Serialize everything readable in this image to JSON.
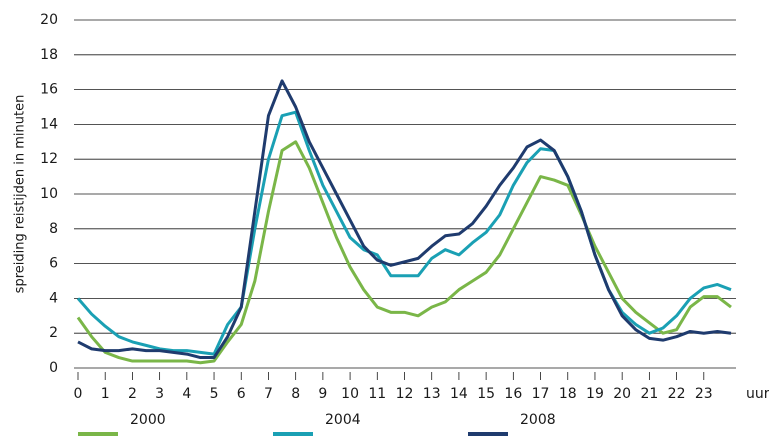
{
  "chart_data": {
    "type": "line",
    "ylabel": "spreiding reistijden in minuten",
    "xlabel": "uur",
    "x": [
      0,
      0.5,
      1,
      1.5,
      2,
      2.5,
      3,
      3.5,
      4,
      4.5,
      5,
      5.5,
      6,
      6.5,
      7,
      7.5,
      8,
      8.5,
      9,
      9.5,
      10,
      10.5,
      11,
      11.5,
      12,
      12.5,
      13,
      13.5,
      14,
      14.5,
      15,
      15.5,
      16,
      16.5,
      17,
      17.5,
      18,
      18.5,
      19,
      19.5,
      20,
      20.5,
      21,
      21.5,
      22,
      22.5,
      23,
      23.5,
      24
    ],
    "series": [
      {
        "name": "2000",
        "color": "#7ab648",
        "values": [
          2.9,
          1.8,
          0.9,
          0.6,
          0.4,
          0.4,
          0.4,
          0.4,
          0.4,
          0.3,
          0.4,
          1.5,
          2.5,
          5,
          9,
          12.5,
          13,
          11.5,
          9.5,
          7.5,
          5.8,
          4.5,
          3.5,
          3.2,
          3.2,
          3.0,
          3.5,
          3.8,
          4.5,
          5.0,
          5.5,
          6.5,
          8,
          9.5,
          11,
          10.8,
          10.5,
          8.8,
          7,
          5.5,
          4,
          3.2,
          2.6,
          2.0,
          2.2,
          3.5,
          4.1,
          4.1,
          3.5
        ]
      },
      {
        "name": "2004",
        "color": "#1aa0b4",
        "values": [
          4.0,
          3.1,
          2.4,
          1.8,
          1.5,
          1.3,
          1.1,
          1.0,
          1.0,
          0.9,
          0.8,
          2.5,
          3.5,
          8,
          12,
          14.5,
          14.7,
          12.5,
          10.5,
          9,
          7.5,
          6.8,
          6.5,
          5.3,
          5.3,
          5.3,
          6.3,
          6.8,
          6.5,
          7.2,
          7.8,
          8.8,
          10.5,
          11.8,
          12.6,
          12.5,
          11,
          9,
          6.5,
          4.5,
          3.2,
          2.5,
          2.0,
          2.3,
          3.0,
          4.0,
          4.6,
          4.8,
          4.5
        ]
      },
      {
        "name": "2008",
        "color": "#1f3b6e",
        "values": [
          1.5,
          1.1,
          1.0,
          1.0,
          1.1,
          1.0,
          1.0,
          0.9,
          0.8,
          0.6,
          0.6,
          1.8,
          3.5,
          9,
          14.5,
          16.5,
          15,
          13,
          11.5,
          10,
          8.5,
          7,
          6.2,
          5.9,
          6.1,
          6.3,
          7,
          7.6,
          7.7,
          8.3,
          9.3,
          10.5,
          11.5,
          12.7,
          13.1,
          12.5,
          11,
          9,
          6.5,
          4.5,
          3,
          2.2,
          1.7,
          1.6,
          1.8,
          2.1,
          2.0,
          2.1,
          2.0
        ]
      }
    ],
    "xlim": [
      0,
      24
    ],
    "xticks": [
      0,
      1,
      2,
      3,
      4,
      5,
      6,
      7,
      8,
      9,
      10,
      11,
      12,
      13,
      14,
      15,
      16,
      17,
      18,
      19,
      20,
      21,
      22,
      23
    ],
    "ylim": [
      0,
      20
    ],
    "yticks": [
      0,
      2,
      4,
      6,
      8,
      10,
      12,
      14,
      16,
      18,
      20
    ],
    "grid": true
  }
}
